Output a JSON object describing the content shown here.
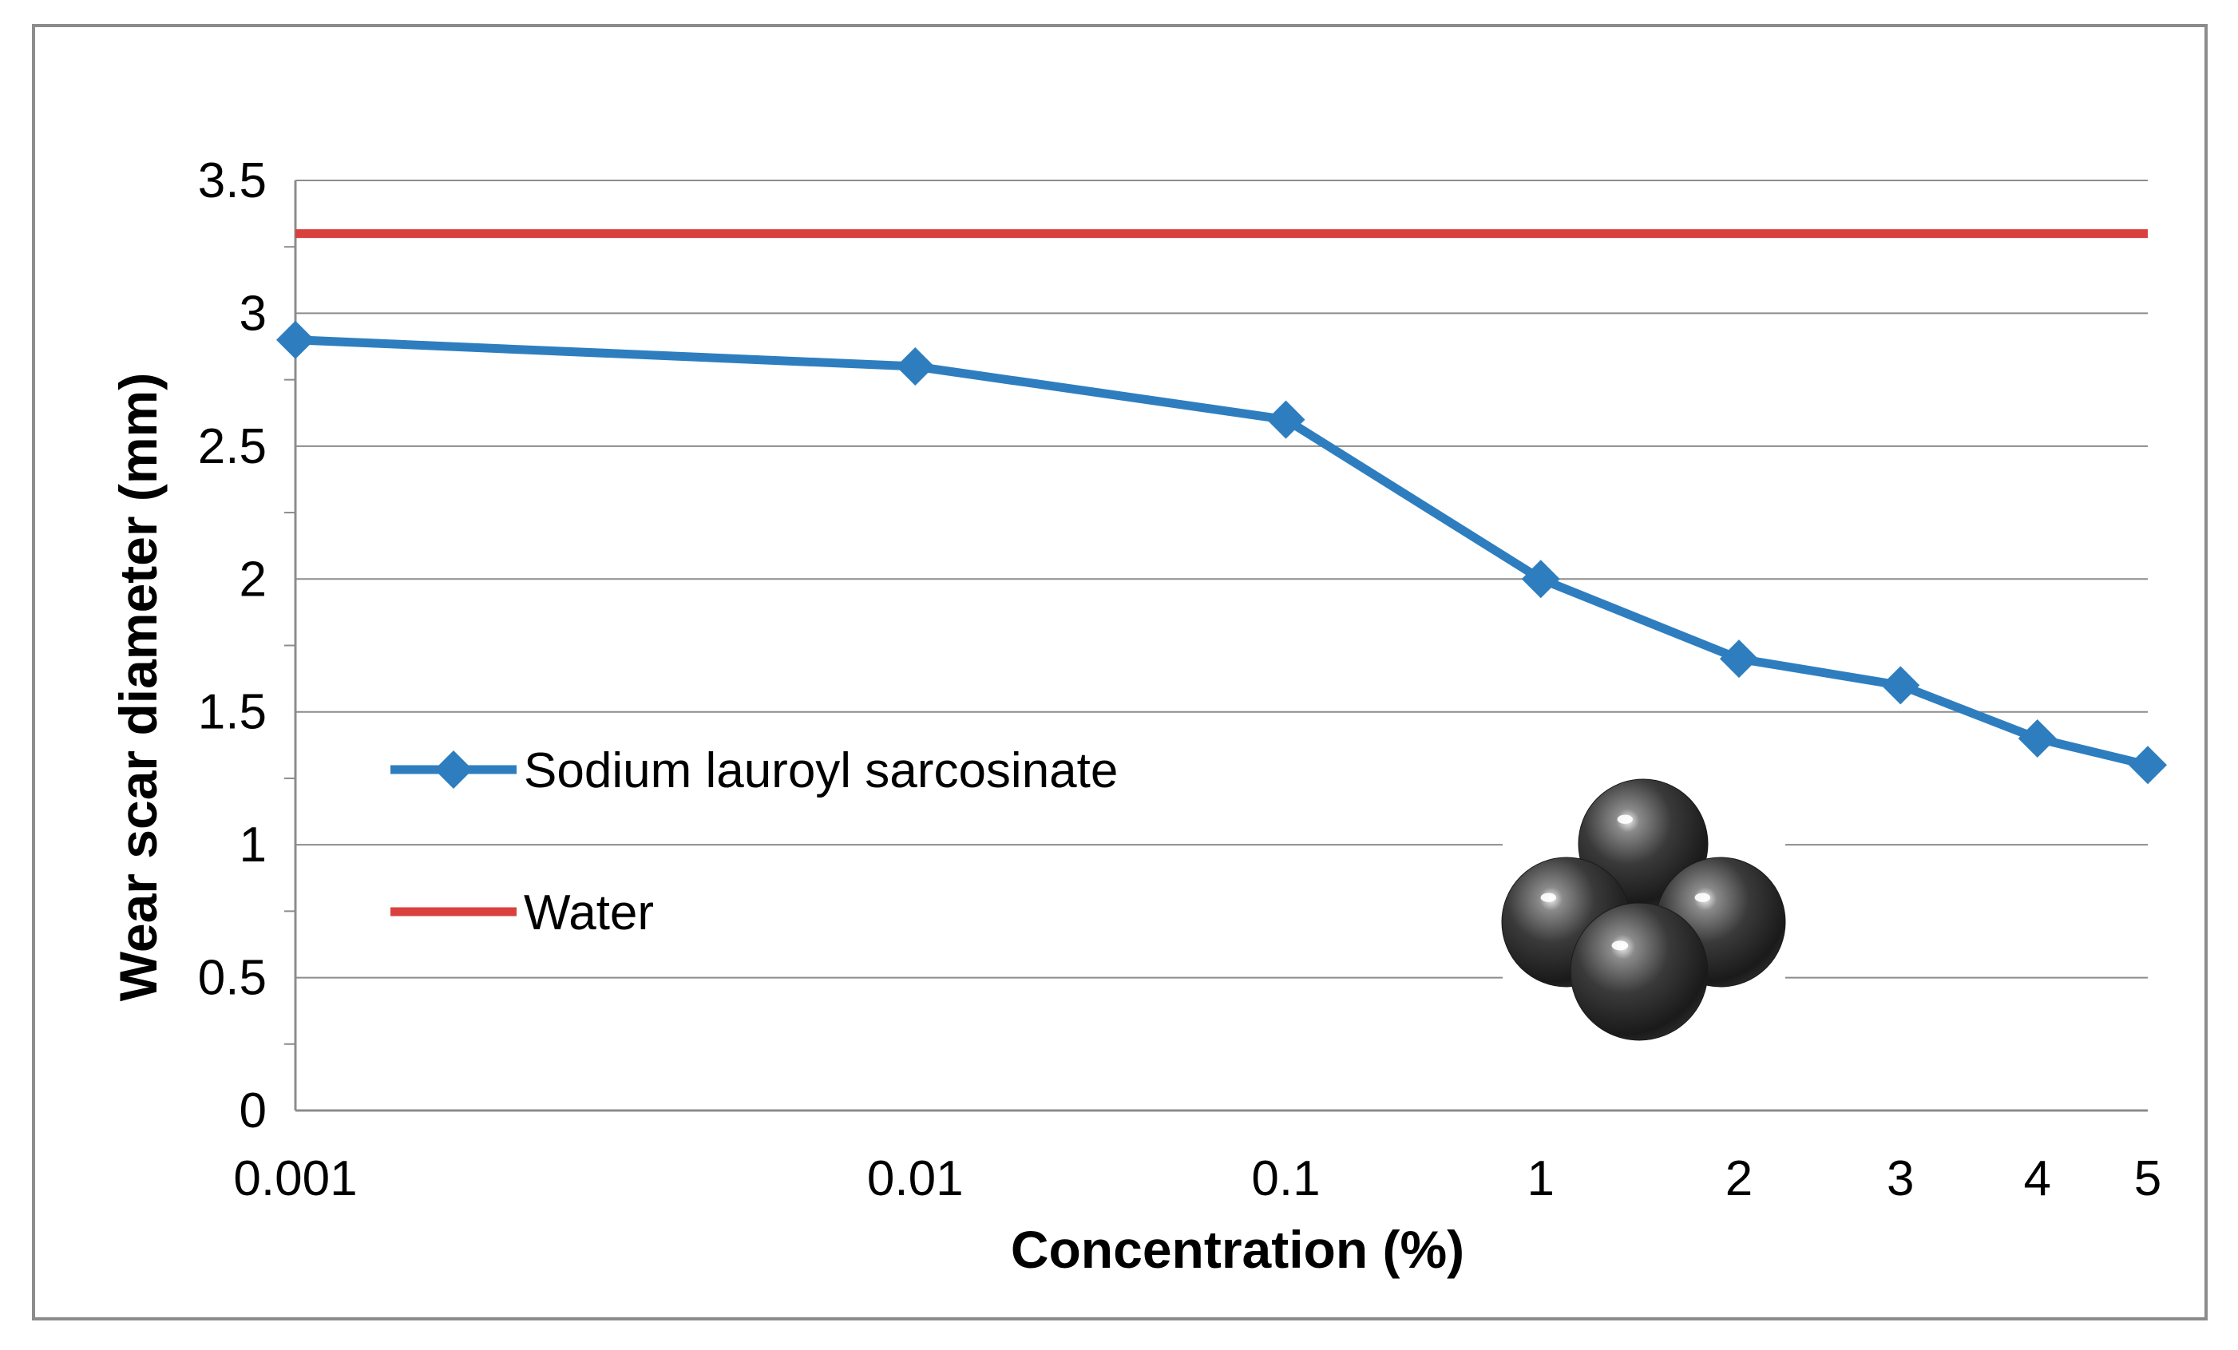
{
  "chart_data": {
    "type": "line",
    "title": "",
    "xlabel": "Concentration (%)",
    "ylabel": "Wear scar diameter (mm)",
    "ylim": [
      0,
      3.5
    ],
    "yticks": [
      "0",
      "0.5",
      "1",
      "1.5",
      "2",
      "2.5",
      "3",
      "3.5"
    ],
    "categories": [
      "0.001",
      "0.01",
      "0.1",
      "1",
      "2",
      "3",
      "4",
      "5"
    ],
    "grid": true,
    "legend_position": "left",
    "series": [
      {
        "name": "Sodium lauroyl sarcosinate",
        "color": "#2e7ebf",
        "marker": "diamond",
        "values": [
          2.9,
          2.8,
          2.6,
          2.0,
          1.7,
          1.6,
          1.4,
          1.3
        ]
      },
      {
        "name": "Water",
        "color": "#d9413f",
        "marker": "none",
        "values": [
          3.3,
          3.3,
          3.3,
          3.3,
          3.3,
          3.3,
          3.3,
          3.3
        ]
      }
    ],
    "inset_image": "steel-balls-photo"
  }
}
